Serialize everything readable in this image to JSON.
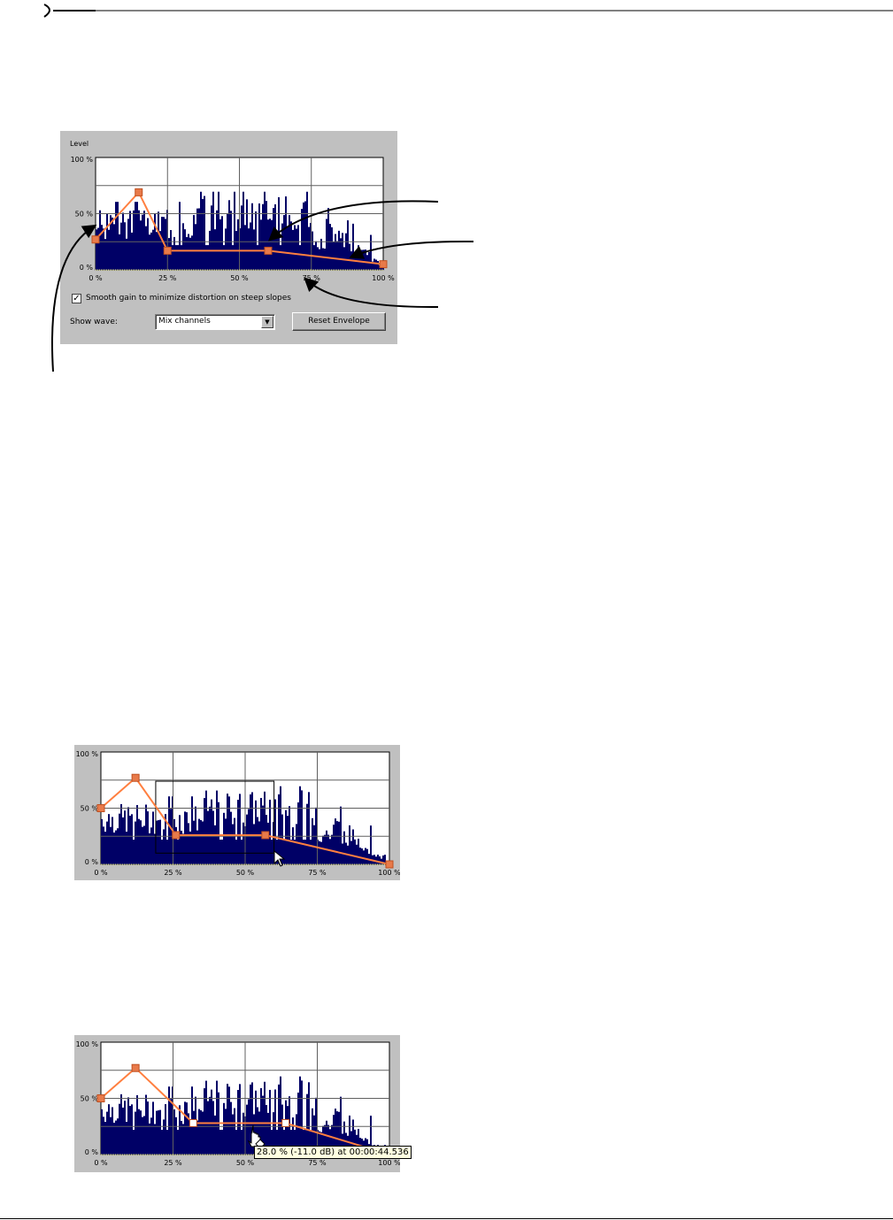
{
  "colors": {
    "wave": "#000066",
    "envelope": "#ff7f3f",
    "handle": "#e87a4a",
    "grid": "#606060",
    "panel": "#c0c0c0"
  },
  "figure1": {
    "level_label": "Level",
    "y_ticks": [
      "100 %",
      "50 %",
      "0 %"
    ],
    "x_ticks": [
      "0 %",
      "25 %",
      "50 %",
      "75 %",
      "100 %"
    ],
    "envelope_points": [
      [
        0,
        27
      ],
      [
        15,
        69
      ],
      [
        25,
        17
      ],
      [
        60,
        17
      ],
      [
        100,
        5
      ]
    ],
    "smooth_checkbox": {
      "label": "Smooth gain to minimize distortion on steep slopes",
      "checked": true
    },
    "show_wave_label": "Show wave:",
    "show_wave_value": "Mix channels",
    "reset_button": "Reset Envelope"
  },
  "figure2": {
    "y_ticks": [
      "100 %",
      "50 %",
      "0 %"
    ],
    "x_ticks": [
      "0 %",
      "25 %",
      "50 %",
      "75 %",
      "100 %"
    ],
    "envelope_points": [
      [
        0,
        50
      ],
      [
        12,
        77
      ],
      [
        26,
        26
      ],
      [
        57,
        26
      ],
      [
        100,
        0
      ]
    ],
    "selection_rect_percent": {
      "x1": 19,
      "x2": 60,
      "y1": 10,
      "y2": 74
    }
  },
  "figure3": {
    "y_ticks": [
      "100 %",
      "50 %",
      "0 %"
    ],
    "x_ticks": [
      "0 %",
      "25 %",
      "50 %",
      "75 %",
      "100 %"
    ],
    "envelope_points": [
      [
        0,
        50
      ],
      [
        12,
        77
      ],
      [
        32,
        28
      ],
      [
        64,
        28
      ],
      [
        100,
        0
      ]
    ],
    "tooltip": "28.0 % (-11.0 dB) at 00:00:44.536"
  }
}
